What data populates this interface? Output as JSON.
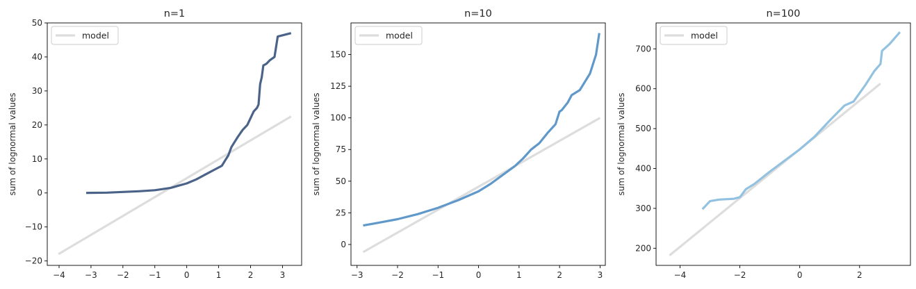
{
  "chart_data": [
    {
      "type": "line",
      "title": "n=1",
      "xlabel": "",
      "ylabel": "sum of lognormal values",
      "xlim": [
        -4.37,
        3.6
      ],
      "ylim": [
        -21.3,
        50
      ],
      "xticks": [
        -4,
        -3,
        -2,
        -1,
        0,
        1,
        2,
        3
      ],
      "yticks": [
        -20,
        -10,
        0,
        10,
        20,
        30,
        40,
        50
      ],
      "grid": false,
      "legend": {
        "position": "top-left",
        "entries": [
          "model"
        ]
      },
      "series": [
        {
          "name": "model",
          "color": "#dddddd",
          "x": [
            -4.02,
            3.27
          ],
          "y": [
            -18,
            22.5
          ]
        },
        {
          "color": "#4c6389",
          "x": [
            -3.15,
            -2.5,
            -2.0,
            -1.5,
            -1.0,
            -0.5,
            0.0,
            0.3,
            0.6,
            0.9,
            1.1,
            1.2,
            1.3,
            1.4,
            1.5,
            1.6,
            1.75,
            1.9,
            2.0,
            2.1,
            2.2,
            2.25,
            2.3,
            2.35,
            2.4,
            2.5,
            2.6,
            2.75,
            2.85,
            3.27
          ],
          "y": [
            0.0,
            0.1,
            0.3,
            0.5,
            0.8,
            1.5,
            2.8,
            4.0,
            5.5,
            7.0,
            8.0,
            9.5,
            11.0,
            13.5,
            15.0,
            16.5,
            18.5,
            20.0,
            22.0,
            24.0,
            25.0,
            26.0,
            32.0,
            34.0,
            37.5,
            38.0,
            39.0,
            40.0,
            46.0,
            47.0
          ]
        }
      ]
    },
    {
      "type": "line",
      "title": "n=10",
      "xlabel": "",
      "ylabel": "sum of lognormal values",
      "xlim": [
        -3.15,
        3.13
      ],
      "ylim": [
        -16.5,
        175
      ],
      "xticks": [
        -3,
        -2,
        -1,
        0,
        1,
        2,
        3
      ],
      "yticks": [
        0,
        25,
        50,
        75,
        100,
        125,
        150
      ],
      "grid": false,
      "legend": {
        "position": "top-left",
        "entries": [
          "model"
        ]
      },
      "series": [
        {
          "name": "model",
          "color": "#dddddd",
          "x": [
            -2.85,
            3.0
          ],
          "y": [
            -6,
            100
          ]
        },
        {
          "color": "#5f98c9",
          "x": [
            -2.85,
            -2.5,
            -2.0,
            -1.5,
            -1.0,
            -0.5,
            0.0,
            0.3,
            0.6,
            0.9,
            1.1,
            1.3,
            1.5,
            1.7,
            1.9,
            2.0,
            2.05,
            2.2,
            2.3,
            2.5,
            2.75,
            2.9,
            2.98
          ],
          "y": [
            15,
            17,
            20,
            24,
            29,
            35,
            42,
            48,
            55,
            62,
            68,
            75,
            80,
            88,
            95,
            105,
            106,
            112,
            118,
            122,
            135,
            150,
            167
          ]
        }
      ]
    },
    {
      "type": "line",
      "title": "n=100",
      "xlabel": "",
      "ylabel": "sum of lognormal values",
      "xlim": [
        -4.8,
        3.7
      ],
      "ylim": [
        157,
        765
      ],
      "xticks": [
        -4,
        -2,
        0,
        2
      ],
      "yticks": [
        200,
        300,
        400,
        500,
        600,
        700
      ],
      "grid": false,
      "legend": {
        "position": "top-left",
        "entries": [
          "model"
        ]
      },
      "series": [
        {
          "name": "model",
          "color": "#dddddd",
          "x": [
            -4.35,
            2.7
          ],
          "y": [
            182,
            613
          ]
        },
        {
          "color": "#93c2e0",
          "x": [
            -3.25,
            -3.0,
            -2.7,
            -2.2,
            -2.0,
            -1.8,
            -1.5,
            -1.0,
            -0.5,
            0.0,
            0.5,
            1.0,
            1.5,
            1.8,
            2.2,
            2.5,
            2.7,
            2.75,
            3.0,
            3.35
          ],
          "y": [
            298,
            318,
            322,
            324,
            328,
            348,
            362,
            392,
            420,
            448,
            480,
            520,
            558,
            568,
            610,
            645,
            662,
            695,
            712,
            742
          ]
        }
      ]
    }
  ]
}
